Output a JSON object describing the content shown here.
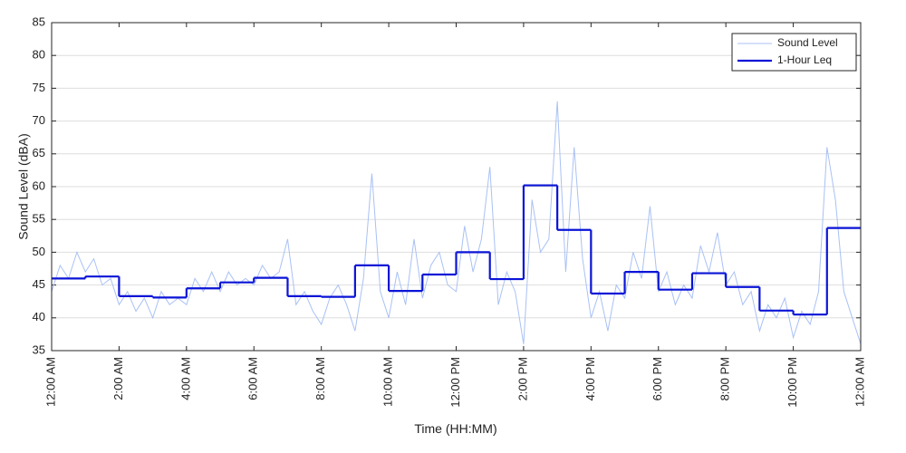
{
  "chart_data": {
    "type": "line",
    "x_label": "Time (HH:MM)",
    "y_label": "Sound Level (dBA)",
    "xlim": [
      0,
      24
    ],
    "ylim": [
      35,
      85
    ],
    "yticks": [
      35,
      40,
      45,
      50,
      55,
      60,
      65,
      70,
      75,
      80,
      85
    ],
    "xticks": [
      {
        "value": 0,
        "label": "12:00 AM"
      },
      {
        "value": 2,
        "label": "2:00 AM"
      },
      {
        "value": 4,
        "label": "4:00 AM"
      },
      {
        "value": 6,
        "label": "6:00 AM"
      },
      {
        "value": 8,
        "label": "8:00 AM"
      },
      {
        "value": 10,
        "label": "10:00 AM"
      },
      {
        "value": 12,
        "label": "12:00 PM"
      },
      {
        "value": 14,
        "label": "2:00 PM"
      },
      {
        "value": 16,
        "label": "4:00 PM"
      },
      {
        "value": 18,
        "label": "6:00 PM"
      },
      {
        "value": 20,
        "label": "8:00 PM"
      },
      {
        "value": 22,
        "label": "10:00 PM"
      },
      {
        "value": 24,
        "label": "12:00 AM"
      }
    ],
    "grid": true,
    "legend": "upper right",
    "series": [
      {
        "name": "Sound Level",
        "color": "#a9c1f5",
        "style": "thin",
        "x": [
          0,
          0.25,
          0.5,
          0.75,
          1,
          1.25,
          1.5,
          1.75,
          2,
          2.25,
          2.5,
          2.75,
          3,
          3.25,
          3.5,
          3.75,
          4,
          4.25,
          4.5,
          4.75,
          5,
          5.25,
          5.5,
          5.75,
          6,
          6.25,
          6.5,
          6.75,
          7,
          7.25,
          7.5,
          7.75,
          8,
          8.25,
          8.5,
          8.75,
          9,
          9.25,
          9.5,
          9.75,
          10,
          10.25,
          10.5,
          10.75,
          11,
          11.25,
          11.5,
          11.75,
          12,
          12.25,
          12.5,
          12.75,
          13,
          13.25,
          13.5,
          13.75,
          14,
          14.25,
          14.5,
          14.75,
          15,
          15.25,
          15.5,
          15.75,
          16,
          16.25,
          16.5,
          16.75,
          17,
          17.25,
          17.5,
          17.75,
          18,
          18.25,
          18.5,
          18.75,
          19,
          19.25,
          19.5,
          19.75,
          20,
          20.25,
          20.5,
          20.75,
          21,
          21.25,
          21.5,
          21.75,
          22,
          22.25,
          22.5,
          22.75,
          23,
          23.25,
          23.5,
          23.75,
          24
        ],
        "values": [
          44,
          48,
          46,
          50,
          47,
          49,
          45,
          46,
          42,
          44,
          41,
          43,
          40,
          44,
          42,
          43,
          42,
          46,
          44,
          47,
          44,
          47,
          45,
          46,
          45,
          48,
          46,
          47,
          52,
          42,
          44,
          41,
          39,
          43,
          45,
          42,
          38,
          46,
          62,
          44,
          40,
          47,
          42,
          52,
          43,
          48,
          50,
          45,
          44,
          54,
          47,
          52,
          63,
          42,
          47,
          44,
          36,
          58,
          50,
          52,
          73,
          47,
          66,
          49,
          40,
          44,
          38,
          45,
          43,
          50,
          46,
          57,
          44,
          47,
          42,
          45,
          43,
          51,
          47,
          53,
          45,
          47,
          42,
          44,
          38,
          42,
          40,
          43,
          37,
          41,
          39,
          44,
          66,
          58,
          44,
          40,
          36
        ]
      },
      {
        "name": "1-Hour Leq",
        "color": "#0a14d6",
        "style": "step",
        "x": [
          0,
          1,
          2,
          3,
          4,
          5,
          6,
          7,
          8,
          9,
          10,
          11,
          12,
          13,
          14,
          15,
          16,
          17,
          18,
          19,
          20,
          21,
          22,
          23
        ],
        "values": [
          46,
          46.3,
          43.3,
          43.1,
          44.5,
          45.4,
          46.1,
          43.3,
          43.2,
          48,
          44.1,
          46.6,
          50,
          45.9,
          60.2,
          53.4,
          43.7,
          47,
          44.3,
          46.8,
          44.7,
          41.1,
          40.5,
          53.7
        ]
      }
    ]
  }
}
